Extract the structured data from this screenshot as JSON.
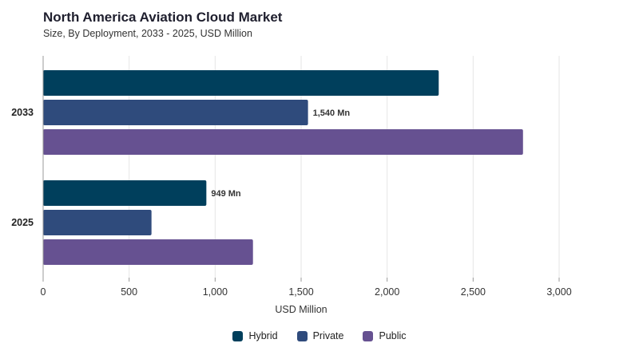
{
  "title": "North America Aviation Cloud Market",
  "subtitle": "Size, By Deployment, 2033 - 2025, USD Million",
  "chart_data": {
    "type": "bar",
    "orientation": "horizontal",
    "title": "North America Aviation Cloud Market",
    "subtitle": "Size, By Deployment, 2033 - 2025, USD Million",
    "categories": [
      "2033",
      "2025"
    ],
    "series": [
      {
        "name": "Hybrid",
        "color": "#003f5c",
        "values": [
          2300,
          949
        ]
      },
      {
        "name": "Private",
        "color": "#2f4b7c",
        "values": [
          1540,
          630
        ]
      },
      {
        "name": "Public",
        "color": "#665191",
        "values": [
          2790,
          1220
        ]
      }
    ],
    "data_labels": [
      {
        "series": "Private",
        "category": "2033",
        "text": "1,540 Mn"
      },
      {
        "series": "Hybrid",
        "category": "2025",
        "text": "949 Mn"
      }
    ],
    "xlabel": "USD Million",
    "ylabel": "",
    "xlim": [
      0,
      3000
    ],
    "xticks": [
      0,
      500,
      1000,
      1500,
      2000,
      2500,
      3000
    ],
    "xtick_labels": [
      "0",
      "500",
      "1,000",
      "1,500",
      "2,000",
      "2,500",
      "3,000"
    ],
    "grid": true,
    "legend": "bottom"
  }
}
